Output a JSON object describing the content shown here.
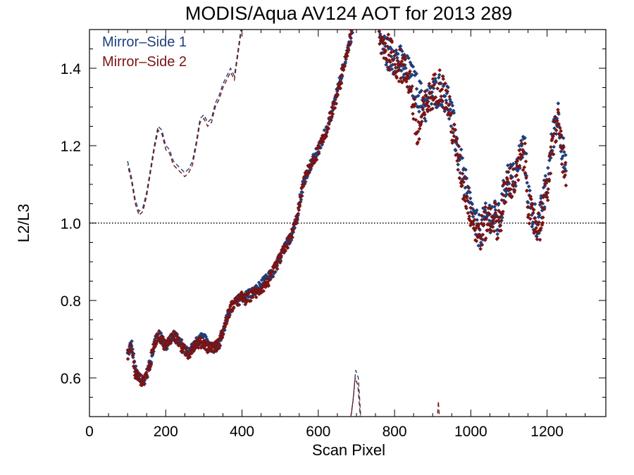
{
  "chart_data": {
    "type": "scatter",
    "title": "MODIS/Aqua AV124 AOT for 2013 289",
    "xlabel": "Scan Pixel",
    "ylabel": "L2/L3",
    "xlim": [
      0,
      1354
    ],
    "ylim": [
      0.5,
      1.5
    ],
    "x_ticks": [
      "0",
      "200",
      "400",
      "600",
      "800",
      "1000",
      "1200"
    ],
    "y_ticks": [
      "0.6",
      "0.8",
      "1.0",
      "1.2",
      "1.4"
    ],
    "reference_line": {
      "y": 1.0,
      "style": "dotted"
    },
    "legend": {
      "position": "top-left"
    },
    "colors": {
      "ms1": "#1f3f7a",
      "ms2": "#7a1414"
    },
    "series": [
      {
        "name": "Mirror–Side 1",
        "color": "#1f3f7a",
        "style": "points",
        "profile": [
          [
            100,
            0.66
          ],
          [
            110,
            0.69
          ],
          [
            120,
            0.62
          ],
          [
            130,
            0.6
          ],
          [
            140,
            0.59
          ],
          [
            150,
            0.61
          ],
          [
            160,
            0.64
          ],
          [
            170,
            0.69
          ],
          [
            180,
            0.71
          ],
          [
            190,
            0.7
          ],
          [
            200,
            0.68
          ],
          [
            210,
            0.7
          ],
          [
            220,
            0.71
          ],
          [
            230,
            0.7
          ],
          [
            240,
            0.69
          ],
          [
            250,
            0.67
          ],
          [
            260,
            0.67
          ],
          [
            270,
            0.68
          ],
          [
            280,
            0.69
          ],
          [
            290,
            0.7
          ],
          [
            300,
            0.7
          ],
          [
            310,
            0.69
          ],
          [
            320,
            0.68
          ],
          [
            330,
            0.68
          ],
          [
            340,
            0.69
          ],
          [
            350,
            0.72
          ],
          [
            360,
            0.75
          ],
          [
            370,
            0.78
          ],
          [
            380,
            0.79
          ],
          [
            390,
            0.8
          ],
          [
            400,
            0.81
          ],
          [
            410,
            0.81
          ],
          [
            420,
            0.82
          ],
          [
            430,
            0.82
          ],
          [
            440,
            0.83
          ],
          [
            450,
            0.84
          ],
          [
            460,
            0.85
          ],
          [
            470,
            0.86
          ],
          [
            480,
            0.87
          ],
          [
            490,
            0.89
          ],
          [
            500,
            0.91
          ],
          [
            510,
            0.93
          ],
          [
            520,
            0.95
          ],
          [
            530,
            0.97
          ],
          [
            540,
            1.0
          ],
          [
            550,
            1.05
          ],
          [
            560,
            1.1
          ],
          [
            570,
            1.13
          ],
          [
            580,
            1.15
          ],
          [
            590,
            1.17
          ],
          [
            600,
            1.19
          ],
          [
            610,
            1.21
          ],
          [
            620,
            1.24
          ],
          [
            630,
            1.27
          ],
          [
            640,
            1.3
          ],
          [
            650,
            1.34
          ],
          [
            660,
            1.38
          ],
          [
            670,
            1.42
          ],
          [
            680,
            1.46
          ],
          [
            690,
            1.5
          ],
          [
            760,
            1.48
          ],
          [
            780,
            1.44
          ],
          [
            800,
            1.43
          ],
          [
            820,
            1.41
          ],
          [
            840,
            1.38
          ],
          [
            860,
            1.34
          ],
          [
            880,
            1.3
          ],
          [
            900,
            1.33
          ],
          [
            920,
            1.35
          ],
          [
            940,
            1.32
          ],
          [
            960,
            1.22
          ],
          [
            980,
            1.12
          ],
          [
            1000,
            1.04
          ],
          [
            1010,
            1.0
          ],
          [
            1020,
            0.98
          ],
          [
            1030,
            0.99
          ],
          [
            1040,
            1.01
          ],
          [
            1050,
            1.02
          ],
          [
            1060,
            1.02
          ],
          [
            1070,
            1.0
          ],
          [
            1080,
            1.03
          ],
          [
            1090,
            1.1
          ],
          [
            1100,
            1.12
          ],
          [
            1110,
            1.11
          ],
          [
            1120,
            1.13
          ],
          [
            1130,
            1.18
          ],
          [
            1140,
            1.2
          ],
          [
            1150,
            1.08
          ],
          [
            1160,
            1.02
          ],
          [
            1170,
            1.01
          ],
          [
            1180,
            1.0
          ],
          [
            1190,
            1.06
          ],
          [
            1200,
            1.1
          ],
          [
            1210,
            1.18
          ],
          [
            1220,
            1.26
          ],
          [
            1230,
            1.28
          ],
          [
            1240,
            1.2
          ],
          [
            1250,
            1.12
          ]
        ]
      },
      {
        "name": "Mirror–Side 2",
        "color": "#7a1414",
        "style": "points",
        "profile": [
          [
            100,
            0.66
          ],
          [
            110,
            0.68
          ],
          [
            120,
            0.61
          ],
          [
            130,
            0.6
          ],
          [
            140,
            0.59
          ],
          [
            150,
            0.61
          ],
          [
            160,
            0.64
          ],
          [
            170,
            0.69
          ],
          [
            180,
            0.71
          ],
          [
            190,
            0.7
          ],
          [
            200,
            0.68
          ],
          [
            210,
            0.7
          ],
          [
            220,
            0.71
          ],
          [
            230,
            0.7
          ],
          [
            240,
            0.68
          ],
          [
            250,
            0.67
          ],
          [
            260,
            0.66
          ],
          [
            270,
            0.68
          ],
          [
            280,
            0.69
          ],
          [
            290,
            0.69
          ],
          [
            300,
            0.69
          ],
          [
            310,
            0.68
          ],
          [
            320,
            0.68
          ],
          [
            330,
            0.68
          ],
          [
            340,
            0.69
          ],
          [
            350,
            0.72
          ],
          [
            360,
            0.75
          ],
          [
            370,
            0.78
          ],
          [
            380,
            0.79
          ],
          [
            390,
            0.8
          ],
          [
            400,
            0.81
          ],
          [
            410,
            0.8
          ],
          [
            420,
            0.81
          ],
          [
            430,
            0.82
          ],
          [
            440,
            0.82
          ],
          [
            450,
            0.83
          ],
          [
            460,
            0.84
          ],
          [
            470,
            0.85
          ],
          [
            480,
            0.87
          ],
          [
            490,
            0.89
          ],
          [
            500,
            0.91
          ],
          [
            510,
            0.93
          ],
          [
            520,
            0.95
          ],
          [
            530,
            0.97
          ],
          [
            540,
            1.0
          ],
          [
            550,
            1.04
          ],
          [
            560,
            1.1
          ],
          [
            570,
            1.13
          ],
          [
            580,
            1.15
          ],
          [
            590,
            1.16
          ],
          [
            600,
            1.19
          ],
          [
            610,
            1.21
          ],
          [
            620,
            1.23
          ],
          [
            630,
            1.27
          ],
          [
            640,
            1.3
          ],
          [
            650,
            1.33
          ],
          [
            660,
            1.37
          ],
          [
            670,
            1.42
          ],
          [
            680,
            1.46
          ],
          [
            690,
            1.5
          ],
          [
            760,
            1.47
          ],
          [
            780,
            1.45
          ],
          [
            800,
            1.42
          ],
          [
            820,
            1.4
          ],
          [
            840,
            1.37
          ],
          [
            860,
            1.22
          ],
          [
            880,
            1.3
          ],
          [
            900,
            1.34
          ],
          [
            920,
            1.36
          ],
          [
            940,
            1.31
          ],
          [
            960,
            1.2
          ],
          [
            980,
            1.1
          ],
          [
            1000,
            1.03
          ],
          [
            1010,
            0.99
          ],
          [
            1020,
            0.97
          ],
          [
            1030,
            0.98
          ],
          [
            1040,
            1.0
          ],
          [
            1050,
            1.01
          ],
          [
            1060,
            1.02
          ],
          [
            1070,
            1.0
          ],
          [
            1080,
            1.02
          ],
          [
            1090,
            1.08
          ],
          [
            1100,
            1.11
          ],
          [
            1110,
            1.1
          ],
          [
            1120,
            1.12
          ],
          [
            1130,
            1.16
          ],
          [
            1140,
            1.18
          ],
          [
            1150,
            1.06
          ],
          [
            1160,
            1.01
          ],
          [
            1170,
            1.0
          ],
          [
            1180,
            0.99
          ],
          [
            1190,
            1.05
          ],
          [
            1200,
            1.08
          ],
          [
            1210,
            1.16
          ],
          [
            1220,
            1.24
          ],
          [
            1230,
            1.26
          ],
          [
            1240,
            1.18
          ],
          [
            1250,
            1.1
          ]
        ]
      },
      {
        "name": "",
        "color": "#1f3f7a",
        "style": "dashed",
        "values": [
          [
            100,
            1.16
          ],
          [
            110,
            1.12
          ],
          [
            120,
            1.06
          ],
          [
            130,
            1.03
          ],
          [
            140,
            1.04
          ],
          [
            150,
            1.08
          ],
          [
            160,
            1.14
          ],
          [
            170,
            1.2
          ],
          [
            180,
            1.25
          ],
          [
            190,
            1.24
          ],
          [
            200,
            1.2
          ],
          [
            210,
            1.19
          ],
          [
            220,
            1.16
          ],
          [
            230,
            1.15
          ],
          [
            240,
            1.14
          ],
          [
            250,
            1.13
          ],
          [
            260,
            1.14
          ],
          [
            270,
            1.16
          ],
          [
            280,
            1.21
          ],
          [
            290,
            1.27
          ],
          [
            300,
            1.28
          ],
          [
            310,
            1.26
          ],
          [
            320,
            1.27
          ],
          [
            330,
            1.31
          ],
          [
            340,
            1.33
          ],
          [
            350,
            1.36
          ],
          [
            360,
            1.38
          ],
          [
            370,
            1.4
          ],
          [
            380,
            1.38
          ],
          [
            390,
            1.45
          ],
          [
            400,
            1.52
          ]
        ]
      },
      {
        "name": "",
        "color": "#7a1414",
        "style": "dashed",
        "values": [
          [
            100,
            1.15
          ],
          [
            110,
            1.11
          ],
          [
            120,
            1.05
          ],
          [
            130,
            1.02
          ],
          [
            140,
            1.03
          ],
          [
            150,
            1.07
          ],
          [
            160,
            1.13
          ],
          [
            170,
            1.19
          ],
          [
            180,
            1.24
          ],
          [
            190,
            1.23
          ],
          [
            200,
            1.19
          ],
          [
            210,
            1.18
          ],
          [
            220,
            1.15
          ],
          [
            230,
            1.14
          ],
          [
            240,
            1.13
          ],
          [
            250,
            1.12
          ],
          [
            260,
            1.13
          ],
          [
            270,
            1.15
          ],
          [
            280,
            1.2
          ],
          [
            290,
            1.26
          ],
          [
            300,
            1.27
          ],
          [
            310,
            1.25
          ],
          [
            320,
            1.26
          ],
          [
            330,
            1.3
          ],
          [
            340,
            1.32
          ],
          [
            350,
            1.35
          ],
          [
            360,
            1.37
          ],
          [
            370,
            1.39
          ],
          [
            380,
            1.37
          ],
          [
            390,
            1.44
          ],
          [
            400,
            1.51
          ]
        ]
      },
      {
        "name": "",
        "color": "#1f3f7a",
        "style": "dashed",
        "values": [
          [
            685,
            0.49
          ],
          [
            692,
            0.55
          ],
          [
            698,
            0.62
          ],
          [
            705,
            0.6
          ],
          [
            712,
            0.49
          ]
        ]
      },
      {
        "name": "",
        "color": "#7a1414",
        "style": "dashed",
        "values": [
          [
            684,
            0.49
          ],
          [
            691,
            0.54
          ],
          [
            697,
            0.6
          ],
          [
            704,
            0.58
          ],
          [
            711,
            0.49
          ]
        ]
      },
      {
        "name": "",
        "color": "#7a1414",
        "style": "dashed",
        "values": [
          [
            912,
            0.49
          ],
          [
            915,
            0.54
          ],
          [
            918,
            0.49
          ]
        ]
      }
    ]
  }
}
